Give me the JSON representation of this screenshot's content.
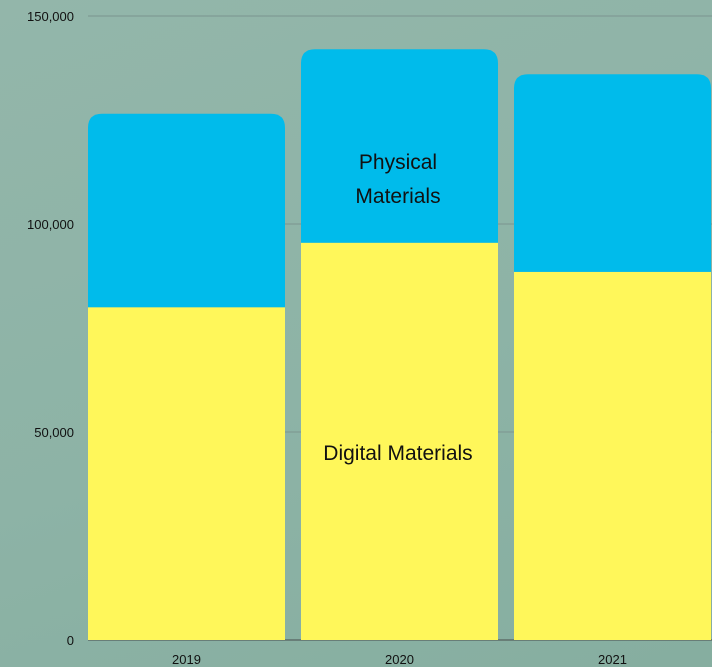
{
  "chart_data": {
    "type": "bar",
    "stacked": true,
    "categories": [
      "2019",
      "2020",
      "2021"
    ],
    "series": [
      {
        "name": "Digital Materials",
        "values": [
          80000,
          95500,
          88500
        ],
        "color": "#fff75a"
      },
      {
        "name": "Physical Materials",
        "values": [
          46500,
          46500,
          47500
        ],
        "color": "#00bbeb"
      }
    ],
    "ylim": [
      0,
      150000
    ],
    "yticks": [
      "0",
      "50,000",
      "100,000",
      "150,000"
    ],
    "ytick_values": [
      0,
      50000,
      100000,
      150000
    ],
    "grid": true,
    "grid_color": "#7f9b94",
    "labels": {
      "digital": "Digital Materials",
      "physical_line1": "Physical",
      "physical_line2": "Materials"
    },
    "title": "",
    "xlabel": "",
    "ylabel": ""
  }
}
